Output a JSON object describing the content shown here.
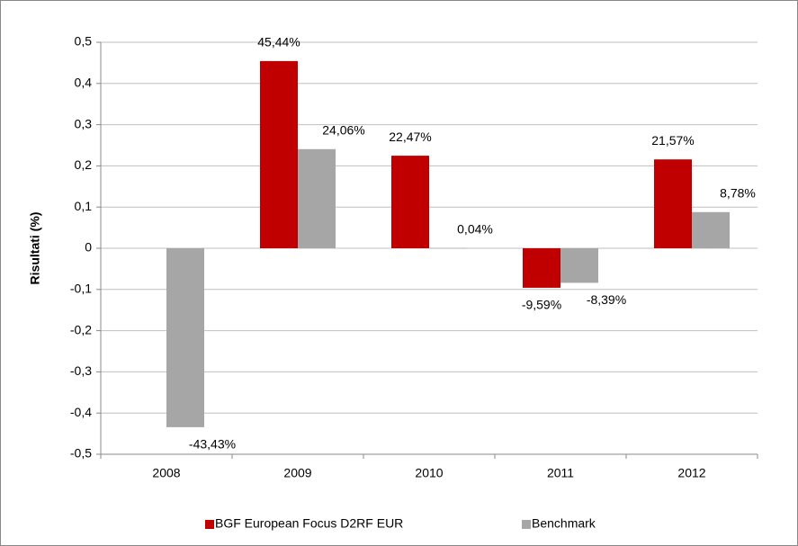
{
  "chart_data": {
    "type": "bar",
    "y_label": "Risultati (%)",
    "categories": [
      "2008",
      "2009",
      "2010",
      "2011",
      "2012"
    ],
    "series": [
      {
        "name": "BGF European Focus D2RF EUR",
        "color": "#c00000",
        "values": [
          null,
          0.4544,
          0.2247,
          -0.0959,
          0.2157
        ],
        "value_labels": [
          null,
          "45,44%",
          "22,47%",
          "-9,59%",
          "21,57%"
        ]
      },
      {
        "name": "Benchmark",
        "color": "#a6a6a6",
        "values": [
          -0.4343,
          0.2406,
          0.0004,
          -0.0839,
          0.0878
        ],
        "value_labels": [
          "-43,43%",
          "24,06%",
          "0,04%",
          "-8,39%",
          "8,78%"
        ]
      }
    ],
    "ylim": [
      -0.5,
      0.5
    ],
    "yticks": [
      {
        "value": -0.5,
        "label": "-0,5"
      },
      {
        "value": -0.4,
        "label": "-0,4"
      },
      {
        "value": -0.3,
        "label": "-0,3"
      },
      {
        "value": -0.2,
        "label": "-0,2"
      },
      {
        "value": -0.1,
        "label": "-0,1"
      },
      0,
      {
        "value": 0.1,
        "label": "0,1"
      },
      {
        "value": 0.2,
        "label": "0,2"
      },
      {
        "value": 0.3,
        "label": "0,3"
      },
      {
        "value": 0.4,
        "label": "0,4"
      },
      {
        "value": 0.5,
        "label": "0,5"
      }
    ],
    "grid": true,
    "legend": "bottom"
  }
}
